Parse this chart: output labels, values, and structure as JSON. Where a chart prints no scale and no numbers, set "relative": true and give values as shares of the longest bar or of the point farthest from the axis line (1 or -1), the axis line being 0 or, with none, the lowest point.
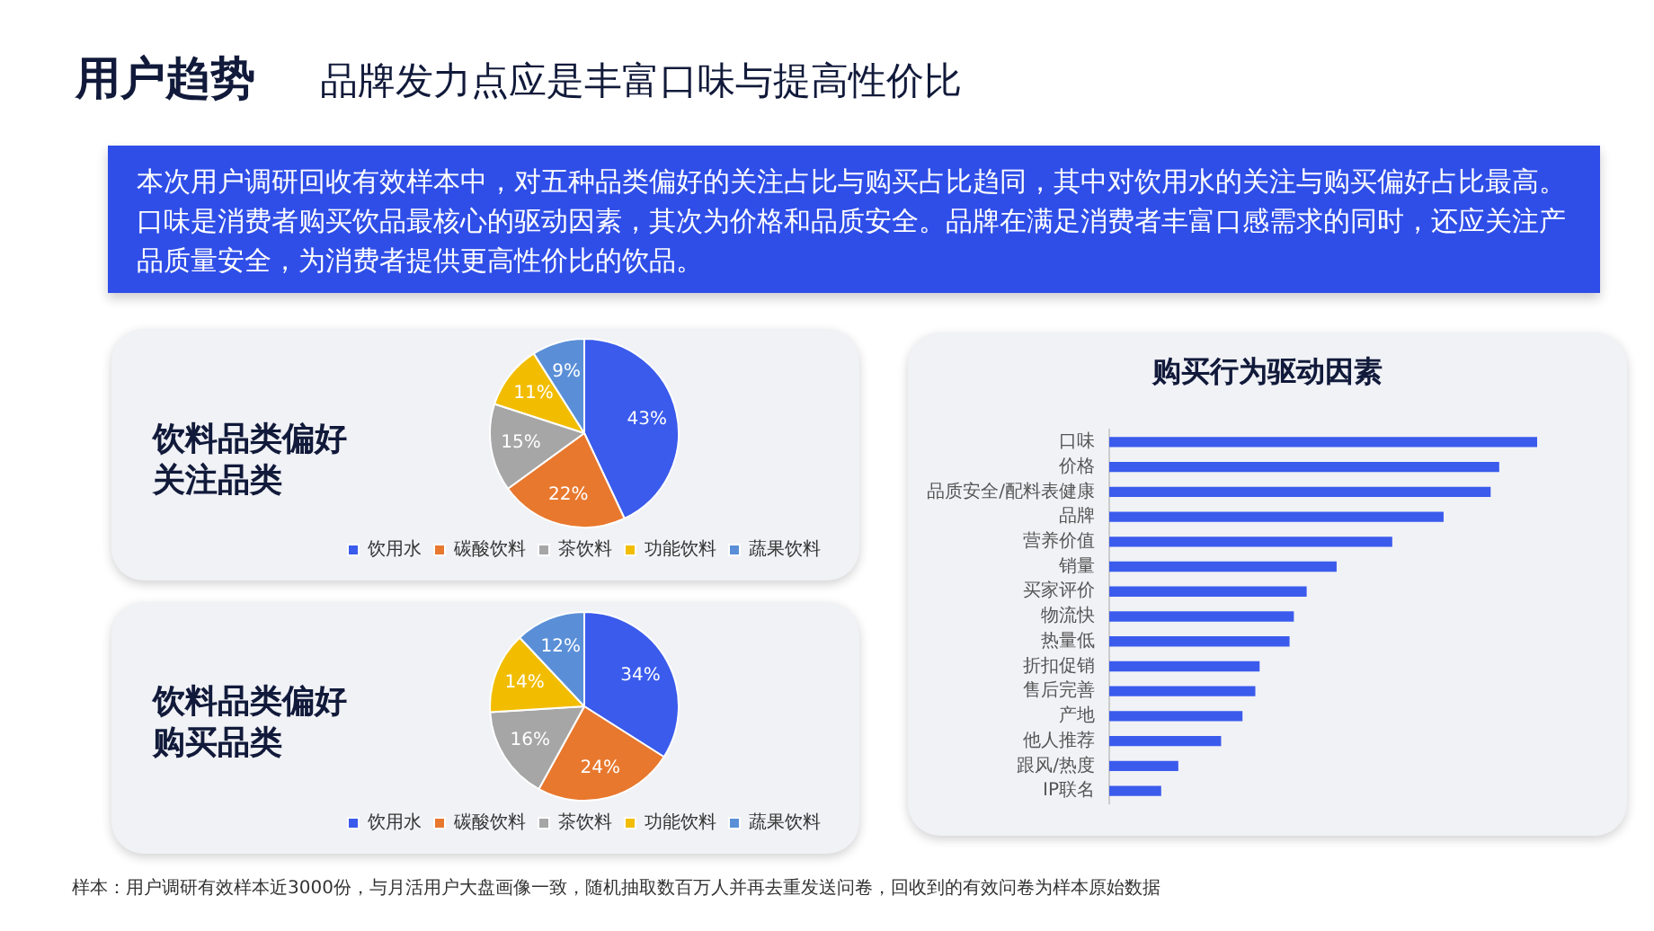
{
  "chart_data": [
    {
      "type": "other",
      "title": "用户趋势",
      "subtitle": "品牌发力点应是丰富口味与提高性价比",
      "annotations": [
        "本次用户调研回收有效样本中，对五种品类偏好的关注占比与购买占比趋同，其中对饮用水的关注与购买偏好占比最高。口味是消费者购买饮品最核心的驱动因素，其次为价格和品质安全。品牌在满足消费者丰富口感需求的同时，还应关注产品质量安全，为消费者提供更高性价比的饮品。",
        "样本：用户调研有效样本近3000份，与月活用户大盘画像一致，随机抽取数百万人并再去重发送问卷，回收到的有效问卷为样本原始数据"
      ]
    },
    {
      "type": "pie",
      "title": "饮料品类偏好关注品类",
      "categories": [
        "饮用水",
        "碳酸饮料",
        "茶饮料",
        "功能饮料",
        "蔬果饮料"
      ],
      "values": [
        43,
        22,
        15,
        11,
        9
      ],
      "colors": [
        "#3b5bec",
        "#e8782e",
        "#a6a6a6",
        "#f2bd00",
        "#5a8fd8"
      ],
      "value_labels": [
        "43%",
        "22%",
        "15%",
        "11%",
        "9%"
      ],
      "legend": "bottom"
    },
    {
      "type": "pie",
      "title": "饮料品类偏好购买品类",
      "categories": [
        "饮用水",
        "碳酸饮料",
        "茶饮料",
        "功能饮料",
        "蔬果饮料"
      ],
      "values": [
        34,
        24,
        16,
        14,
        12
      ],
      "colors": [
        "#3b5bec",
        "#e8782e",
        "#a6a6a6",
        "#f2bd00",
        "#5a8fd8"
      ],
      "value_labels": [
        "34%",
        "24%",
        "16%",
        "14%",
        "12%"
      ],
      "legend": "bottom"
    },
    {
      "type": "bar",
      "title": "购买行为驱动因素",
      "orientation": "horizontal",
      "relative": true,
      "categories": [
        "口味",
        "价格",
        "品质安全/配料表健康",
        "品牌",
        "营养价值",
        "销量",
        "买家评价",
        "物流快",
        "热量低",
        "折扣促销",
        "售后完善",
        "产地",
        "他人推荐",
        "跟风/热度",
        "IP联名"
      ],
      "values": [
        1,
        0.91,
        0.89,
        0.78,
        0.66,
        0.53,
        0.46,
        0.43,
        0.42,
        0.35,
        0.34,
        0.31,
        0.26,
        0.16,
        0.12
      ],
      "color": "#3b5bec"
    }
  ]
}
